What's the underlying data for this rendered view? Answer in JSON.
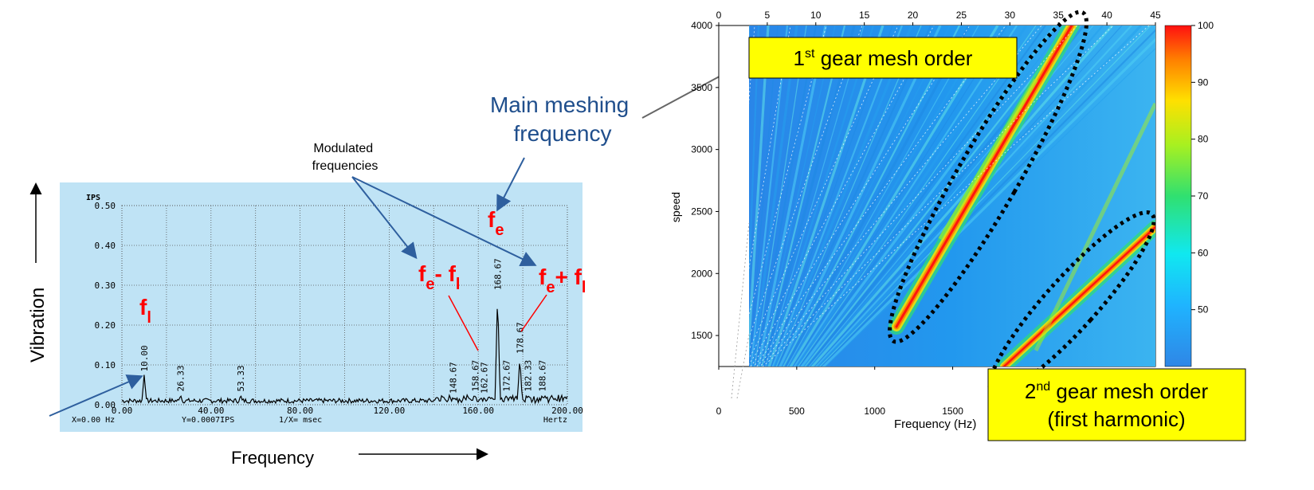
{
  "colors": {
    "panel_bg": "#bfe3f5",
    "spectrum_line": "#000000",
    "annotation_red": "#ff0000",
    "annotation_blue": "#1f4e8c",
    "arrow_blue": "#2e5f9e",
    "callout_yellow": "#ffff00",
    "grid_dotted": "#888888"
  },
  "axis_arrows": {
    "vertical_label": "Vibration",
    "horizontal_label": "Frequency"
  },
  "annotations": {
    "modulated": "Modulated\nfrequencies",
    "main_meshing": "Main meshing\nfrequency",
    "fe": {
      "base": "f",
      "sub": "e"
    },
    "fl": {
      "base": "f",
      "sub": "l"
    },
    "fe_minus_fl": {
      "base": "f",
      "sub1": "e",
      "op": "- ",
      "base2": "f",
      "sub2": "l"
    },
    "fe_plus_fl": {
      "base": "f",
      "sub1": "e",
      "op": "+ ",
      "base2": "f",
      "sub2": "l"
    }
  },
  "callouts": {
    "first_order": {
      "num": "1",
      "sup": "st",
      "rest": " gear mesh order"
    },
    "second_order": {
      "num": "2",
      "sup": "nd",
      "rest": " gear mesh order",
      "line2": "(first harmonic)"
    }
  },
  "chart_data": [
    {
      "type": "line",
      "unit_label": "IPS",
      "ylim": [
        0,
        0.5
      ],
      "yticks": [
        "0.00",
        "0.10",
        "0.20",
        "0.30",
        "0.40",
        "0.50"
      ],
      "xlim": [
        0,
        200
      ],
      "xticks": [
        "0.00",
        "40.00",
        "80.00",
        "120.00",
        "160.00",
        "200.00"
      ],
      "xunit": "Hertz",
      "readout": {
        "x": "X=0.00 Hz",
        "y": "Y=0.0007IPS",
        "inv": "1/X=  msec"
      },
      "grid": true,
      "peaks": [
        {
          "x": 10.0,
          "y": 0.075,
          "label": "10.00"
        },
        {
          "x": 26.33,
          "y": 0.025,
          "label": "26.33"
        },
        {
          "x": 53.33,
          "y": 0.025,
          "label": "53.33"
        },
        {
          "x": 148.67,
          "y": 0.02,
          "label": "148.67"
        },
        {
          "x": 158.67,
          "y": 0.025,
          "label": "158.67"
        },
        {
          "x": 162.67,
          "y": 0.02,
          "label": "162.67"
        },
        {
          "x": 168.67,
          "y": 0.28,
          "label": "168.67"
        },
        {
          "x": 172.67,
          "y": 0.025,
          "label": "172.67"
        },
        {
          "x": 178.67,
          "y": 0.12,
          "label": "178.67"
        },
        {
          "x": 182.33,
          "y": 0.025,
          "label": "182.33"
        },
        {
          "x": 188.67,
          "y": 0.025,
          "label": "188.67"
        }
      ]
    },
    {
      "type": "heatmap",
      "xlabel": "Frequency (Hz)",
      "ylabel": "speed",
      "xlim": [
        0,
        2800
      ],
      "xticks": [
        0,
        500,
        1000,
        1500
      ],
      "ylim": [
        1250,
        4000
      ],
      "yticks": [
        1500,
        2000,
        2500,
        3000,
        3500,
        4000
      ],
      "top_axis_ticks": [
        0,
        5,
        10,
        15,
        20,
        25,
        30,
        35,
        40,
        45
      ],
      "colorbar": {
        "range": [
          40,
          100
        ],
        "ticks": [
          50,
          60,
          70,
          80,
          90,
          100
        ]
      }
    }
  ]
}
